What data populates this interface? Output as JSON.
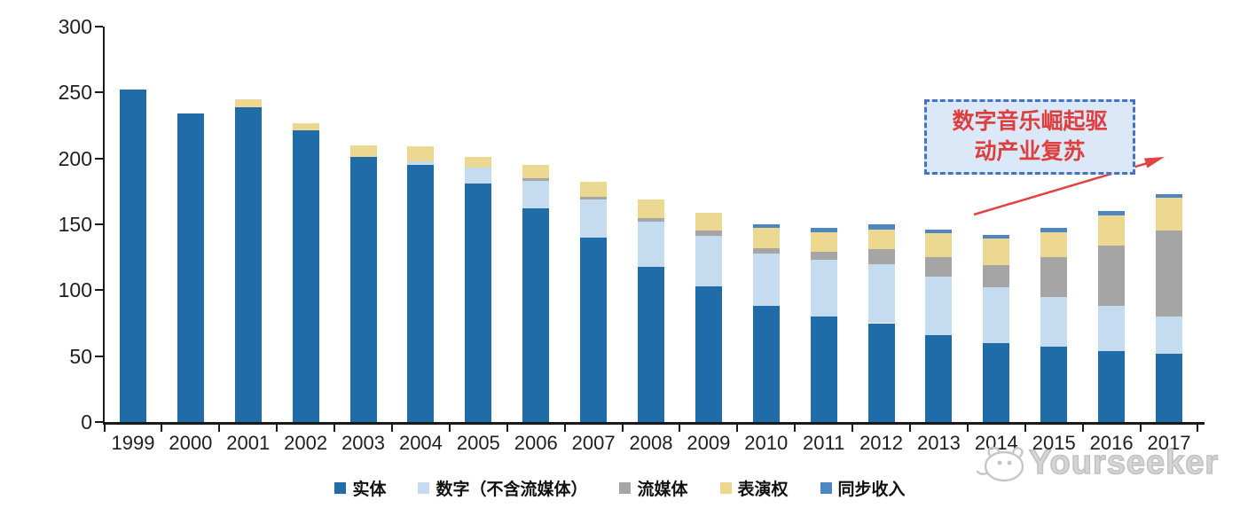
{
  "chart_data": {
    "type": "bar",
    "stacked": true,
    "title": "",
    "xlabel": "",
    "ylabel": "",
    "categories": [
      "1999",
      "2000",
      "2001",
      "2002",
      "2003",
      "2004",
      "2005",
      "2006",
      "2007",
      "2008",
      "2009",
      "2010",
      "2011",
      "2012",
      "2013",
      "2014",
      "2015",
      "2016",
      "2017"
    ],
    "series": [
      {
        "name": "实体",
        "color": "#1F6CA8",
        "values": [
          252,
          234,
          239,
          221,
          201,
          195,
          181,
          162,
          140,
          118,
          103,
          88,
          80,
          75,
          66,
          60,
          57,
          54,
          52
        ]
      },
      {
        "name": "数字（不含流媒体）",
        "color": "#C5DCF0",
        "values": [
          0,
          0,
          0,
          0,
          0,
          3,
          12,
          21,
          29,
          34,
          38,
          40,
          43,
          45,
          44,
          42,
          38,
          34,
          28
        ]
      },
      {
        "name": "流媒体",
        "color": "#A5A5A6",
        "values": [
          0,
          0,
          0,
          0,
          0,
          0,
          0,
          2,
          2,
          3,
          4,
          4,
          6,
          11,
          15,
          17,
          30,
          46,
          65
        ]
      },
      {
        "name": "表演权",
        "color": "#EDD892",
        "values": [
          0,
          0,
          6,
          6,
          9,
          11,
          8,
          10,
          11,
          14,
          14,
          15,
          15,
          15,
          18,
          20,
          19,
          23,
          25
        ]
      },
      {
        "name": "同步收入",
        "color": "#4E86C3",
        "values": [
          0,
          0,
          0,
          0,
          0,
          0,
          0,
          0,
          0,
          0,
          0,
          3,
          3,
          4,
          3,
          3,
          3,
          3,
          3
        ]
      }
    ],
    "ylim": [
      0,
      300
    ],
    "yticks": [
      0,
      50,
      100,
      150,
      200,
      250,
      300
    ],
    "grid": false,
    "legend_position": "bottom"
  },
  "annotation": {
    "line1": "数字音乐崛起驱",
    "line2": "动产业复苏",
    "text_color": "#DF3E3E",
    "border_color": "#4673C2",
    "fill_color": "#DBE8F7",
    "arrow_color": "#E04343"
  },
  "watermark": {
    "text": "Yourseeker"
  }
}
